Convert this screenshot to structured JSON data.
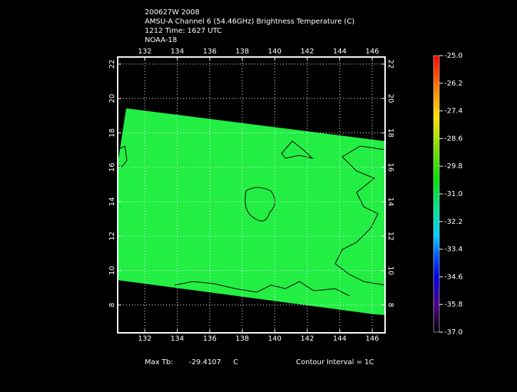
{
  "header": {
    "lines": [
      "200627W 2008",
      "AMSU-A Channel 6 (54.46GHz) Brightness Temperature (C)",
      "1212 Time: 1627 UTC",
      "NOAA-18"
    ]
  },
  "map": {
    "xlim": [
      130.33,
      146.79
    ],
    "ylim": [
      6.38,
      22.41
    ],
    "xticks": [
      132,
      134,
      136,
      138,
      140,
      142,
      144,
      146
    ],
    "yticks": [
      8,
      10,
      12,
      14,
      16,
      18,
      20,
      22
    ],
    "grid": true
  },
  "colorbar": {
    "lim": [
      -37,
      -25
    ],
    "ticks": [
      {
        "value": -25,
        "label": "-25.0"
      },
      {
        "value": -26.2,
        "label": "-26.2"
      },
      {
        "value": -27.4,
        "label": "-27.4"
      },
      {
        "value": -28.6,
        "label": "-28.6"
      },
      {
        "value": -29.8,
        "label": "-29.8"
      },
      {
        "value": -31,
        "label": "-31.0"
      },
      {
        "value": -32.2,
        "label": "-32.2"
      },
      {
        "value": -33.4,
        "label": "-33.4"
      },
      {
        "value": -34.6,
        "label": "-34.6"
      },
      {
        "value": -35.8,
        "label": "-35.8"
      },
      {
        "value": -37,
        "label": "-37.0"
      }
    ]
  },
  "footer": {
    "max_label": "Max Tb:",
    "max_value": "-29.4107",
    "unit": "C",
    "contour": "Contour Interval = 1C"
  }
}
